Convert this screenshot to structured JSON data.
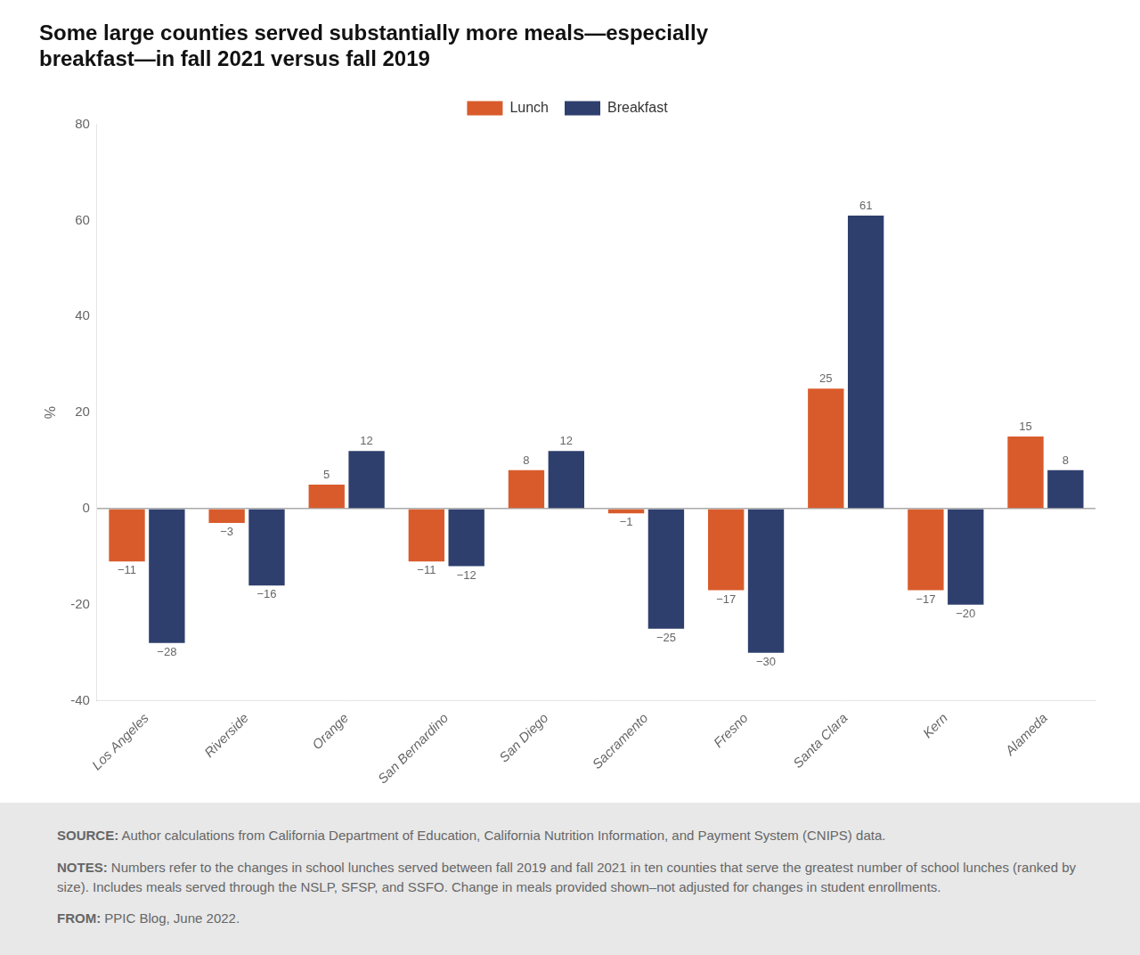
{
  "chart_data": {
    "type": "bar",
    "title": [
      "Some large counties served substantially more meals—especially",
      "breakfast—in fall 2021 versus fall 2019"
    ],
    "categories": [
      "Los Angeles",
      "Riverside",
      "Orange",
      "San Bernardino",
      "San Diego",
      "Sacramento",
      "Fresno",
      "Santa Clara",
      "Kern",
      "Alameda"
    ],
    "series": [
      {
        "name": "Lunch",
        "color": "#D95B2B",
        "values": [
          -11,
          -3,
          5,
          -11,
          8,
          -1,
          -17,
          25,
          -17,
          15
        ],
        "value_labels": [
          "−11",
          "−3",
          "5",
          "−11",
          "8",
          "−1",
          "−17",
          "25",
          "−17",
          "15"
        ]
      },
      {
        "name": "Breakfast",
        "color": "#2E3F6E",
        "values": [
          -28,
          -16,
          12,
          -12,
          12,
          -25,
          -30,
          61,
          -20,
          8
        ],
        "value_labels": [
          "−28",
          "−16",
          "12",
          "−12",
          "12",
          "−25",
          "−30",
          "61",
          "−20",
          "8"
        ]
      }
    ],
    "ylabel": "%",
    "ylim": [
      -40,
      80
    ],
    "yticks": [
      -40,
      -20,
      0,
      20,
      40,
      60,
      80
    ],
    "grid": false,
    "legend": "top",
    "data_labels": true,
    "annotations": [
      "SOURCE: Author calculations from California Department of Education, California Nutrition Information, and Payment System (CNIPS) data.",
      "NOTES: Numbers refer to the changes in school lunches served between fall 2019 and fall 2021 in ten counties that serve the greatest number of school lunches (ranked by size). Includes meals served through the NSLP, SFSP, and SSFO. Change in meals provided shown–not adjusted for changes in student enrollments.",
      "FROM: PPIC Blog, June 2022."
    ]
  }
}
